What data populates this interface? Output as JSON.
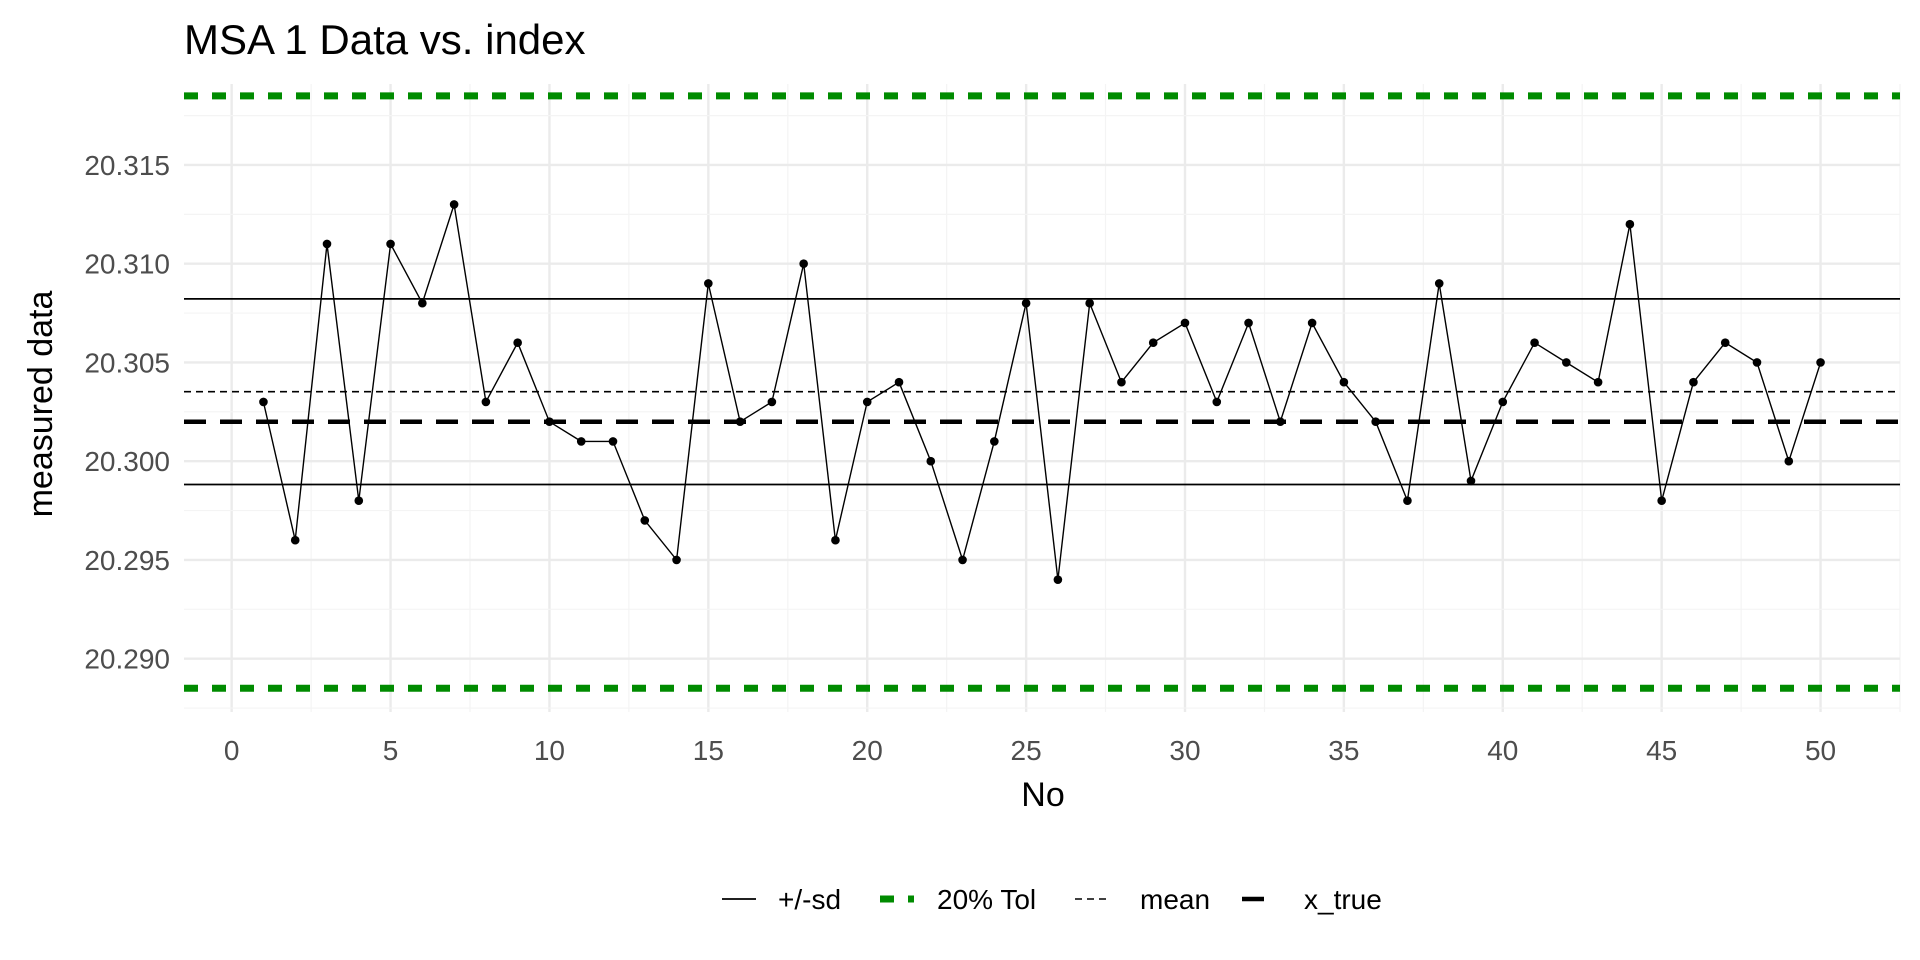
{
  "chart_data": {
    "type": "line",
    "title": "MSA 1 Data vs. index",
    "xlabel": "No",
    "ylabel": "measured data",
    "xlim": [
      -1.5,
      52.5
    ],
    "ylim": [
      20.2873,
      20.3191
    ],
    "x_ticks": [
      0,
      5,
      10,
      15,
      20,
      25,
      30,
      35,
      40,
      45,
      50
    ],
    "x_tick_labels": [
      "0",
      "5",
      "10",
      "15",
      "20",
      "25",
      "30",
      "35",
      "40",
      "45",
      "50"
    ],
    "y_ticks": [
      20.29,
      20.295,
      20.3,
      20.305,
      20.31,
      20.315
    ],
    "y_tick_labels": [
      "20.290",
      "20.295",
      "20.300",
      "20.305",
      "20.310",
      "20.315"
    ],
    "grid": true,
    "legend_position": "bottom",
    "series": [
      {
        "type": "line+points",
        "color": "#000000",
        "x": [
          1,
          2,
          3,
          4,
          5,
          6,
          7,
          8,
          9,
          10,
          11,
          12,
          13,
          14,
          15,
          16,
          17,
          18,
          19,
          20,
          21,
          22,
          23,
          24,
          25,
          26,
          27,
          28,
          29,
          30,
          31,
          32,
          33,
          34,
          35,
          36,
          37,
          38,
          39,
          40,
          41,
          42,
          43,
          44,
          45,
          46,
          47,
          48,
          49,
          50
        ],
        "values": [
          20.303,
          20.296,
          20.311,
          20.298,
          20.311,
          20.308,
          20.313,
          20.303,
          20.306,
          20.302,
          20.301,
          20.301,
          20.297,
          20.295,
          20.309,
          20.302,
          20.303,
          20.31,
          20.296,
          20.303,
          20.304,
          20.3,
          20.295,
          20.301,
          20.308,
          20.294,
          20.308,
          20.304,
          20.306,
          20.307,
          20.303,
          20.307,
          20.302,
          20.307,
          20.304,
          20.302,
          20.298,
          20.309,
          20.299,
          20.303,
          20.306,
          20.305,
          20.304,
          20.312,
          20.298,
          20.304,
          20.306,
          20.305,
          20.3,
          20.305
        ]
      }
    ],
    "reference_lines": [
      {
        "legend": "+/-sd",
        "values": [
          20.29882,
          20.30822
        ],
        "color": "#000000",
        "style": "solid"
      },
      {
        "legend": "20% Tol",
        "values": [
          20.2885,
          20.3185
        ],
        "color": "#008b00",
        "style": "dotted-thick"
      },
      {
        "legend": "mean",
        "values": [
          20.30352
        ],
        "color": "#000000",
        "style": "dashed-fine"
      },
      {
        "legend": "x_true",
        "values": [
          20.302
        ],
        "color": "#000000",
        "style": "dashed-thick"
      }
    ],
    "legend": [
      "+/-sd",
      "20% Tol",
      "mean",
      "x_true"
    ]
  }
}
